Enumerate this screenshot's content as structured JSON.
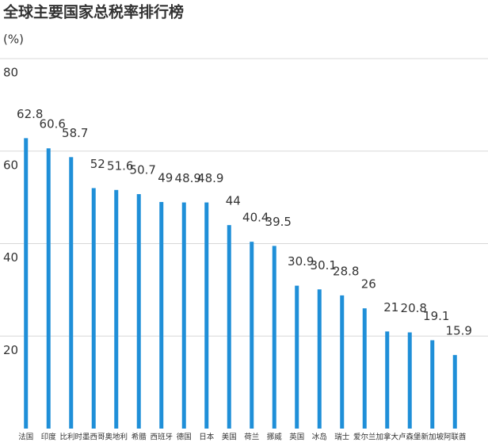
{
  "chart_data": {
    "type": "bar",
    "title": "全球主要国家总税率排行榜",
    "y_label": "(%)",
    "categories": [
      "法国",
      "印度",
      "比利时",
      "墨西哥",
      "奥地利",
      "希腊",
      "西班牙",
      "德国",
      "日本",
      "美国",
      "荷兰",
      "挪威",
      "英国",
      "冰岛",
      "瑞士",
      "爱尔兰",
      "加拿大",
      "卢森堡",
      "新加坡",
      "阿联酋"
    ],
    "values": [
      62.8,
      60.6,
      58.7,
      52,
      51.6,
      50.7,
      49,
      48.9,
      48.9,
      44,
      40.4,
      39.5,
      30.9,
      30.1,
      28.8,
      26,
      21,
      20.8,
      19.1,
      15.9
    ],
    "color": "#1f8fd8",
    "ylim": [
      0,
      80
    ],
    "yticks": [
      20,
      40,
      60,
      80
    ],
    "grid": true
  }
}
